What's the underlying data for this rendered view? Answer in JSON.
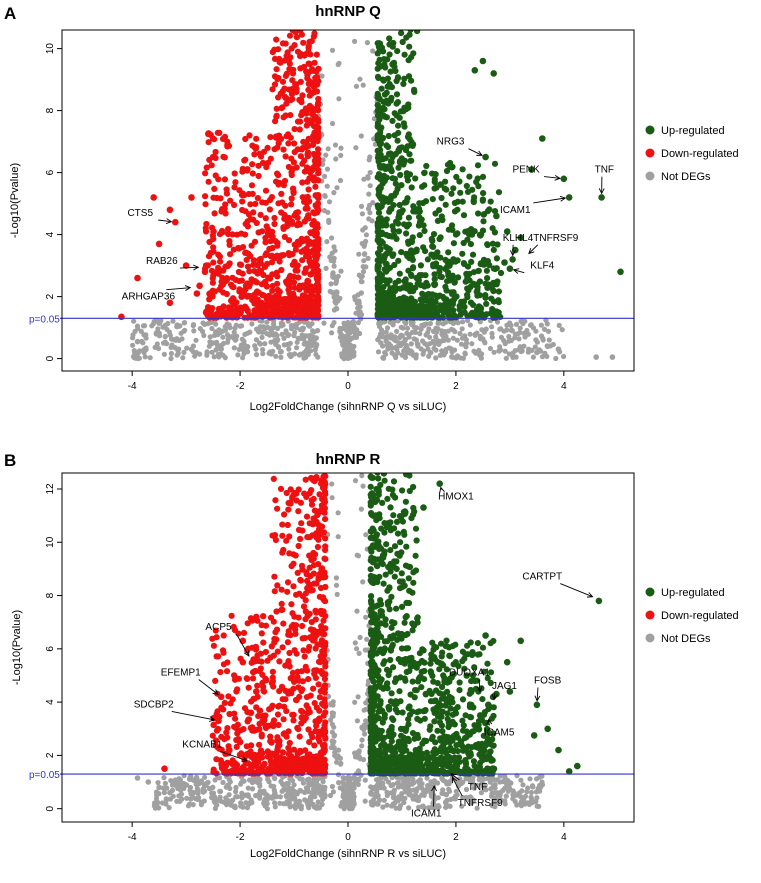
{
  "chart_data": [
    {
      "panel_label": "A",
      "type": "scatter",
      "title": "hnRNP Q",
      "xlabel": "Log2FoldChange (sihnRNP Q vs siLUC)",
      "ylabel": "-Log10(Pvalue)",
      "xlim": [
        -5.3,
        5.3
      ],
      "ylim": [
        -0.4,
        10.6
      ],
      "xticks": [
        -4,
        -2,
        0,
        2,
        4
      ],
      "yticks": [
        0,
        2,
        4,
        6,
        8,
        10
      ],
      "threshold": {
        "y": 1.3,
        "label": "p=0.05"
      },
      "colors": {
        "up": "#1a5c14",
        "down": "#ee1111",
        "not": "#a0a0a0",
        "threshold": "#3333cc"
      },
      "legend": {
        "position": "right",
        "items": [
          {
            "label": "Up-regulated",
            "key": "up"
          },
          {
            "label": "Down-regulated",
            "key": "down"
          },
          {
            "label": "Not DEGs",
            "key": "not"
          }
        ]
      },
      "generated_density": {
        "seed": 11,
        "fc_cut": 0.55,
        "ymax": 10.6,
        "x_half": 4.0,
        "n_not": 900,
        "n_down": 950,
        "n_up": 900,
        "band": 0.5,
        "fcap": 11
      },
      "highlight_points": [
        {
          "x": -4.2,
          "y": 1.35,
          "g": "down"
        },
        {
          "x": -3.9,
          "y": 2.6,
          "g": "down"
        },
        {
          "x": -3.6,
          "y": 5.2,
          "g": "down"
        },
        {
          "x": -3.3,
          "y": 4.8,
          "g": "down"
        },
        {
          "x": -3.2,
          "y": 4.4,
          "g": "down"
        },
        {
          "x": -3.5,
          "y": 3.7,
          "g": "down"
        },
        {
          "x": -2.9,
          "y": 5.2,
          "g": "down"
        },
        {
          "x": -2.8,
          "y": 2.1,
          "g": "down"
        },
        {
          "x": -3.3,
          "y": 1.8,
          "g": "down"
        },
        {
          "x": -2.75,
          "y": 2.35,
          "g": "down"
        },
        {
          "x": -3.0,
          "y": 3.0,
          "g": "down"
        },
        {
          "x": -2.65,
          "y": 2.8,
          "g": "down"
        },
        {
          "x": 4.7,
          "y": 5.2,
          "g": "up"
        },
        {
          "x": 4.1,
          "y": 5.2,
          "g": "up"
        },
        {
          "x": 4.0,
          "y": 5.8,
          "g": "up"
        },
        {
          "x": 3.6,
          "y": 7.1,
          "g": "up"
        },
        {
          "x": 5.05,
          "y": 2.8,
          "g": "up"
        },
        {
          "x": 2.55,
          "y": 6.5,
          "g": "up"
        },
        {
          "x": 2.5,
          "y": 9.6,
          "g": "up"
        },
        {
          "x": 2.7,
          "y": 9.2,
          "g": "up"
        },
        {
          "x": 2.35,
          "y": 9.3,
          "g": "up"
        },
        {
          "x": 3.4,
          "y": 6.1,
          "g": "up"
        },
        {
          "x": 3.05,
          "y": 3.2,
          "g": "up"
        },
        {
          "x": 3.1,
          "y": 3.5,
          "g": "up"
        },
        {
          "x": 2.9,
          "y": 3.1,
          "g": "up"
        },
        {
          "x": 3.0,
          "y": 2.9,
          "g": "up"
        },
        {
          "x": 2.75,
          "y": 4.6,
          "g": "up"
        },
        {
          "x": 2.95,
          "y": 4.1,
          "g": "up"
        },
        {
          "x": 3.2,
          "y": 3.9,
          "g": "up"
        },
        {
          "x": 4.6,
          "y": 0.05,
          "g": "not"
        },
        {
          "x": 4.9,
          "y": 0.05,
          "g": "not"
        },
        {
          "x": 3.5,
          "y": 0.2,
          "g": "not"
        },
        {
          "x": 2.8,
          "y": 0.25,
          "g": "not"
        },
        {
          "x": -3.2,
          "y": 0.6,
          "g": "not"
        },
        {
          "x": -2.9,
          "y": 0.3,
          "g": "not"
        },
        {
          "x": 3.9,
          "y": 0.3,
          "g": "not"
        },
        {
          "x": -3.9,
          "y": 0.55,
          "g": "not"
        }
      ],
      "gene_labels": [
        {
          "text": "CTS5",
          "x": -3.2,
          "y": 4.4,
          "lx": -3.85,
          "ly": 4.6
        },
        {
          "text": "RAB26",
          "x": -2.7,
          "y": 2.95,
          "lx": -3.45,
          "ly": 3.05
        },
        {
          "text": "ARHGAP36",
          "x": -2.85,
          "y": 2.3,
          "lx": -3.7,
          "ly": 1.9
        },
        {
          "text": "NRG3",
          "x": 2.55,
          "y": 6.5,
          "lx": 1.9,
          "ly": 6.9
        },
        {
          "text": "PENK",
          "x": 4.0,
          "y": 5.8,
          "lx": 3.3,
          "ly": 6.0
        },
        {
          "text": "TNF",
          "x": 4.7,
          "y": 5.2,
          "lx": 4.75,
          "ly": 6.0
        },
        {
          "text": "ICAM1",
          "x": 4.1,
          "y": 5.2,
          "lx": 3.1,
          "ly": 4.7
        },
        {
          "text": "KLHL4",
          "x": 3.05,
          "y": 3.2,
          "lx": 3.15,
          "ly": 3.8
        },
        {
          "text": "TNFRSF9",
          "x": 3.3,
          "y": 3.3,
          "lx": 3.85,
          "ly": 3.8
        },
        {
          "text": "KLF4",
          "x": 3.0,
          "y": 2.9,
          "lx": 3.6,
          "ly": 2.9
        }
      ]
    },
    {
      "panel_label": "B",
      "type": "scatter",
      "title": "hnRNP R",
      "xlabel": "Log2FoldChange (sihnRNP R vs siLUC)",
      "ylabel": "-Log10(Pvalue)",
      "xlim": [
        -5.3,
        5.3
      ],
      "ylim": [
        -0.5,
        12.6
      ],
      "xticks": [
        -4,
        -2,
        0,
        2,
        4
      ],
      "yticks": [
        0,
        2,
        4,
        6,
        8,
        10,
        12
      ],
      "threshold": {
        "y": 1.3,
        "label": "p=0.05"
      },
      "colors": {
        "up": "#1a5c14",
        "down": "#ee1111",
        "not": "#a0a0a0",
        "threshold": "#3333cc"
      },
      "legend": {
        "position": "right",
        "items": [
          {
            "label": "Up-regulated",
            "key": "up"
          },
          {
            "label": "Down-regulated",
            "key": "down"
          },
          {
            "label": "Not DEGs",
            "key": "not"
          }
        ]
      },
      "generated_density": {
        "seed": 29,
        "fc_cut": 0.42,
        "ymax": 12.6,
        "x_half": 3.6,
        "n_not": 900,
        "n_down": 750,
        "n_up": 1050,
        "band": 0.42,
        "fcap": 13
      },
      "highlight_points": [
        {
          "x": 4.65,
          "y": 7.8,
          "g": "up"
        },
        {
          "x": 4.25,
          "y": 1.6,
          "g": "up"
        },
        {
          "x": 4.1,
          "y": 1.4,
          "g": "up"
        },
        {
          "x": 3.5,
          "y": 3.9,
          "g": "up"
        },
        {
          "x": 3.45,
          "y": 2.75,
          "g": "up"
        },
        {
          "x": 3.2,
          "y": 6.3,
          "g": "up"
        },
        {
          "x": 2.95,
          "y": 5.5,
          "g": "up"
        },
        {
          "x": 2.75,
          "y": 4.3,
          "g": "up"
        },
        {
          "x": 2.6,
          "y": 3.9,
          "g": "up"
        },
        {
          "x": 2.55,
          "y": 6.5,
          "g": "up"
        },
        {
          "x": 2.45,
          "y": 3.5,
          "g": "up"
        },
        {
          "x": 2.35,
          "y": 4.8,
          "g": "up"
        },
        {
          "x": 2.2,
          "y": 5.0,
          "g": "up"
        },
        {
          "x": 3.0,
          "y": 4.4,
          "g": "up"
        },
        {
          "x": 1.4,
          "y": 11.3,
          "g": "up"
        },
        {
          "x": 1.7,
          "y": 12.2,
          "g": "up"
        },
        {
          "x": 3.9,
          "y": 2.2,
          "g": "up"
        },
        {
          "x": 3.7,
          "y": 3.0,
          "g": "up"
        },
        {
          "x": -1.75,
          "y": 5.6,
          "g": "down"
        },
        {
          "x": -1.95,
          "y": 5.5,
          "g": "down"
        },
        {
          "x": -2.35,
          "y": 4.2,
          "g": "down"
        },
        {
          "x": -2.4,
          "y": 3.3,
          "g": "down"
        },
        {
          "x": -3.4,
          "y": 1.5,
          "g": "down"
        },
        {
          "x": -1.7,
          "y": 7.2,
          "g": "down"
        },
        {
          "x": -1.95,
          "y": 6.3,
          "g": "down"
        },
        {
          "x": -2.0,
          "y": 2.5,
          "g": "down"
        },
        {
          "x": -2.2,
          "y": 2.2,
          "g": "down"
        },
        {
          "x": -1.8,
          "y": 3.6,
          "g": "down"
        },
        {
          "x": -1.7,
          "y": 4.4,
          "g": "down"
        },
        {
          "x": -3.7,
          "y": 1.0,
          "g": "not"
        },
        {
          "x": -3.5,
          "y": 0.8,
          "g": "not"
        },
        {
          "x": -3.9,
          "y": 1.15,
          "g": "not"
        },
        {
          "x": -3.3,
          "y": 0.6,
          "g": "not"
        },
        {
          "x": -2.8,
          "y": 0.9,
          "g": "not"
        },
        {
          "x": 3.6,
          "y": 0.9,
          "g": "not"
        }
      ],
      "gene_labels": [
        {
          "text": "HMOX1",
          "x": 1.7,
          "y": 12.2,
          "lx": 2.0,
          "ly": 11.6
        },
        {
          "text": "CARTPT",
          "x": 4.6,
          "y": 7.9,
          "lx": 3.6,
          "ly": 8.6
        },
        {
          "text": "ACP5",
          "x": -1.8,
          "y": 5.6,
          "lx": -2.4,
          "ly": 6.7
        },
        {
          "text": "EFEMP1",
          "x": -2.35,
          "y": 4.2,
          "lx": -3.1,
          "ly": 5.0
        },
        {
          "text": "SDCBP2",
          "x": -2.4,
          "y": 3.3,
          "lx": -3.6,
          "ly": 3.8
        },
        {
          "text": "KCNAB1",
          "x": -1.8,
          "y": 1.75,
          "lx": -2.7,
          "ly": 2.3
        },
        {
          "text": "DUOXA1",
          "x": 2.45,
          "y": 4.25,
          "lx": 2.25,
          "ly": 5.0
        },
        {
          "text": "JAG1",
          "x": 2.7,
          "y": 3.95,
          "lx": 2.9,
          "ly": 4.5
        },
        {
          "text": "FOSB",
          "x": 3.5,
          "y": 3.9,
          "lx": 3.7,
          "ly": 4.7
        },
        {
          "text": "ICAM5",
          "x": 2.6,
          "y": 3.5,
          "lx": 2.8,
          "ly": 2.75
        },
        {
          "text": "TNF",
          "x": 1.85,
          "y": 1.4,
          "lx": 2.4,
          "ly": 0.7
        },
        {
          "text": "TNFRSF9",
          "x": 1.9,
          "y": 1.3,
          "lx": 2.45,
          "ly": 0.1
        },
        {
          "text": "ICAM1",
          "x": 1.6,
          "y": 1.0,
          "lx": 1.45,
          "ly": -0.3
        }
      ]
    }
  ]
}
